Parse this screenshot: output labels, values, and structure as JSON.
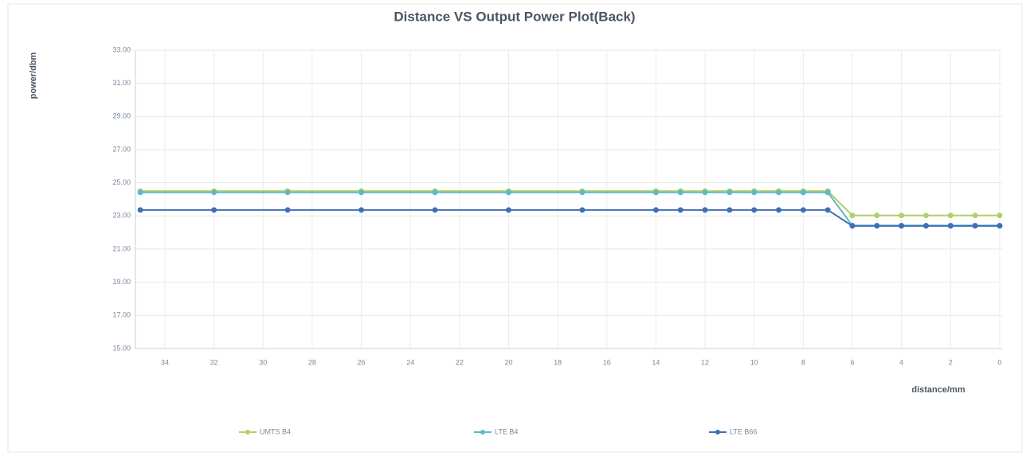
{
  "chart_data": {
    "type": "line",
    "title": "Distance VS Output Power Plot(Back)",
    "x_label": "distance/mm",
    "y_label": "power/dbm",
    "x": [
      35,
      32,
      29,
      26,
      23,
      20,
      17,
      14,
      13,
      12,
      11,
      10,
      9,
      8,
      7,
      6,
      5,
      4,
      3,
      2,
      1,
      0
    ],
    "series": [
      {
        "name": "UMTS B4",
        "color": "#b3cf6a",
        "values": [
          24.5,
          24.5,
          24.5,
          24.5,
          24.5,
          24.5,
          24.5,
          24.5,
          24.5,
          24.5,
          24.5,
          24.5,
          24.5,
          24.5,
          24.5,
          23.03,
          23.03,
          23.03,
          23.03,
          23.03,
          23.03,
          23.03
        ]
      },
      {
        "name": "LTE B4",
        "color": "#5fb8c9",
        "values": [
          24.42,
          24.42,
          24.42,
          24.42,
          24.42,
          24.42,
          24.42,
          24.42,
          24.42,
          24.42,
          24.42,
          24.42,
          24.42,
          24.42,
          24.42,
          22.42,
          22.42,
          22.42,
          22.42,
          22.42,
          22.42,
          22.42
        ]
      },
      {
        "name": "LTE B66",
        "color": "#3f6fb5",
        "values": [
          23.36,
          23.36,
          23.36,
          23.36,
          23.36,
          23.36,
          23.36,
          23.36,
          23.36,
          23.36,
          23.36,
          23.36,
          23.36,
          23.36,
          23.36,
          22.4,
          22.4,
          22.4,
          22.4,
          22.4,
          22.4,
          22.4
        ]
      }
    ],
    "xlim": [
      35.2,
      -0.1
    ],
    "xticks": [
      34,
      32,
      30,
      28,
      26,
      24,
      22,
      20,
      18,
      16,
      14,
      12,
      10,
      8,
      6,
      4,
      2,
      0
    ],
    "ylim": [
      15,
      33
    ],
    "yticks": [
      {
        "value": 15,
        "label": "15.00"
      },
      {
        "value": 17,
        "label": "17.00"
      },
      {
        "value": 19,
        "label": "19.00"
      },
      {
        "value": 21,
        "label": "21.00"
      },
      {
        "value": 23,
        "label": "23.00"
      },
      {
        "value": 25,
        "label": "25.00"
      },
      {
        "value": 27,
        "label": "27.00"
      },
      {
        "value": 29,
        "label": "29.00"
      },
      {
        "value": 31,
        "label": "31.00"
      },
      {
        "value": 33,
        "label": "33.00"
      }
    ],
    "grid": true,
    "legend": "bottom"
  }
}
